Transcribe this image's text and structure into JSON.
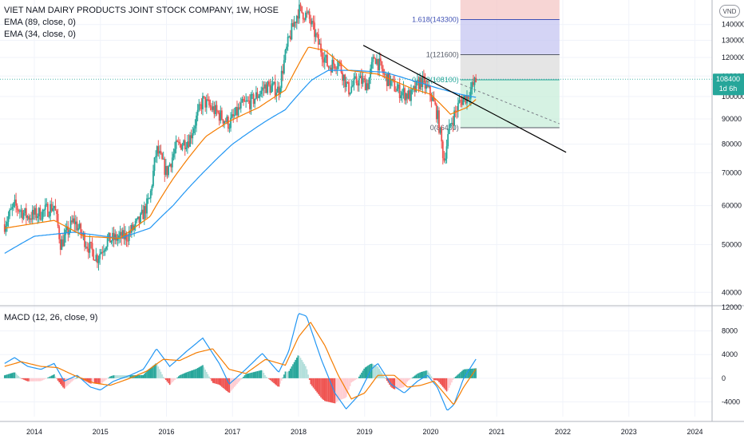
{
  "legend": {
    "title": "VIET NAM DAIRY PRODUCTS JOINT STOCK COMPANY, 1W, HOSE",
    "ema89": "EMA (89, close, 0)",
    "ema34": "EMA (34, close, 0)",
    "macd": "MACD (12, 26, close, 9)"
  },
  "currency_badge": "VND",
  "price_tag": {
    "value": "108400",
    "countdown": "1d 6h"
  },
  "colors": {
    "up": "#26a69a",
    "down": "#ef5350",
    "ema34": "#f57c00",
    "ema89": "#2196f3",
    "macd": "#2196f3",
    "signal": "#f57c00",
    "trendline": "#000000",
    "fib_top": "#f4c7c6",
    "fib_1618": "#c5c6f2",
    "fib_1": "#dcdcdc",
    "fib_zone": "#c8edd9",
    "price_tag": "#26a69a"
  },
  "chart_data": [
    {
      "type": "candlestick",
      "title": "VIET NAM DAIRY PRODUCTS JOINT STOCK COMPANY, 1W, HOSE",
      "x_axis": {
        "ticks": [
          "2014",
          "2015",
          "2016",
          "2017",
          "2018",
          "2019",
          "2020",
          "2021",
          "2022",
          "2023",
          "2024"
        ]
      },
      "y_axis": {
        "ticks": [
          40000,
          50000,
          60000,
          70000,
          80000,
          90000,
          100000,
          110000,
          120000,
          130000,
          140000
        ],
        "scale": "log",
        "range": [
          38000,
          157000
        ]
      },
      "grid": true,
      "price_path": [
        {
          "t": 2013.55,
          "p": 55000
        },
        {
          "t": 2013.7,
          "p": 60000
        },
        {
          "t": 2013.9,
          "p": 57000
        },
        {
          "t": 2014.1,
          "p": 58000
        },
        {
          "t": 2014.3,
          "p": 60000
        },
        {
          "t": 2014.4,
          "p": 50000
        },
        {
          "t": 2014.6,
          "p": 56000
        },
        {
          "t": 2014.8,
          "p": 50000
        },
        {
          "t": 2014.95,
          "p": 47000
        },
        {
          "t": 2015.1,
          "p": 51000
        },
        {
          "t": 2015.4,
          "p": 52000
        },
        {
          "t": 2015.6,
          "p": 56000
        },
        {
          "t": 2015.75,
          "p": 62000
        },
        {
          "t": 2015.85,
          "p": 78000
        },
        {
          "t": 2016.0,
          "p": 70000
        },
        {
          "t": 2016.15,
          "p": 79000
        },
        {
          "t": 2016.35,
          "p": 82000
        },
        {
          "t": 2016.55,
          "p": 98000
        },
        {
          "t": 2016.75,
          "p": 93000
        },
        {
          "t": 2016.95,
          "p": 88000
        },
        {
          "t": 2017.15,
          "p": 96000
        },
        {
          "t": 2017.3,
          "p": 98000
        },
        {
          "t": 2017.5,
          "p": 105000
        },
        {
          "t": 2017.7,
          "p": 103000
        },
        {
          "t": 2017.85,
          "p": 130000
        },
        {
          "t": 2018.0,
          "p": 150000
        },
        {
          "t": 2018.15,
          "p": 145000
        },
        {
          "t": 2018.3,
          "p": 128000
        },
        {
          "t": 2018.45,
          "p": 115000
        },
        {
          "t": 2018.6,
          "p": 118000
        },
        {
          "t": 2018.75,
          "p": 103000
        },
        {
          "t": 2018.9,
          "p": 108000
        },
        {
          "t": 2019.05,
          "p": 106000
        },
        {
          "t": 2019.15,
          "p": 121000
        },
        {
          "t": 2019.3,
          "p": 110000
        },
        {
          "t": 2019.5,
          "p": 103000
        },
        {
          "t": 2019.7,
          "p": 100000
        },
        {
          "t": 2019.85,
          "p": 108000
        },
        {
          "t": 2020.0,
          "p": 101000
        },
        {
          "t": 2020.1,
          "p": 92000
        },
        {
          "t": 2020.2,
          "p": 74000
        },
        {
          "t": 2020.3,
          "p": 88000
        },
        {
          "t": 2020.45,
          "p": 98000
        },
        {
          "t": 2020.55,
          "p": 100000
        },
        {
          "t": 2020.7,
          "p": 108400
        }
      ],
      "ema_34_path": [
        {
          "t": 2013.55,
          "p": 54000
        },
        {
          "t": 2014.3,
          "p": 56000
        },
        {
          "t": 2014.75,
          "p": 52000
        },
        {
          "t": 2015.3,
          "p": 51500
        },
        {
          "t": 2015.75,
          "p": 57000
        },
        {
          "t": 2016.1,
          "p": 68000
        },
        {
          "t": 2016.6,
          "p": 83000
        },
        {
          "t": 2016.95,
          "p": 89000
        },
        {
          "t": 2017.4,
          "p": 95000
        },
        {
          "t": 2017.8,
          "p": 103000
        },
        {
          "t": 2018.15,
          "p": 126000
        },
        {
          "t": 2018.4,
          "p": 124000
        },
        {
          "t": 2018.75,
          "p": 113000
        },
        {
          "t": 2019.2,
          "p": 111000
        },
        {
          "t": 2019.7,
          "p": 104000
        },
        {
          "t": 2020.0,
          "p": 101000
        },
        {
          "t": 2020.3,
          "p": 92000
        },
        {
          "t": 2020.55,
          "p": 95000
        },
        {
          "t": 2020.7,
          "p": 99000
        }
      ],
      "ema_89_path": [
        {
          "t": 2013.55,
          "p": 48000
        },
        {
          "t": 2014.0,
          "p": 52000
        },
        {
          "t": 2014.6,
          "p": 53000
        },
        {
          "t": 2015.3,
          "p": 51500
        },
        {
          "t": 2015.75,
          "p": 54000
        },
        {
          "t": 2016.1,
          "p": 60000
        },
        {
          "t": 2016.6,
          "p": 71000
        },
        {
          "t": 2017.0,
          "p": 80000
        },
        {
          "t": 2017.5,
          "p": 89000
        },
        {
          "t": 2017.8,
          "p": 94000
        },
        {
          "t": 2018.2,
          "p": 108000
        },
        {
          "t": 2018.45,
          "p": 113000
        },
        {
          "t": 2018.8,
          "p": 113000
        },
        {
          "t": 2019.3,
          "p": 112000
        },
        {
          "t": 2019.7,
          "p": 108000
        },
        {
          "t": 2020.1,
          "p": 104000
        },
        {
          "t": 2020.45,
          "p": 101000
        },
        {
          "t": 2020.7,
          "p": 99500
        }
      ],
      "trendline": [
        {
          "t": 2018.98,
          "p": 127000
        },
        {
          "t": 2022.05,
          "p": 77000
        }
      ],
      "projection_line": [
        {
          "t": 2020.45,
          "p": 106000
        },
        {
          "t": 2021.95,
          "p": 88000
        }
      ],
      "fibonacci": {
        "t_start": 2020.45,
        "t_end": 2021.95,
        "levels": [
          {
            "label": "1.618(143300)",
            "value": 143300
          },
          {
            "label": "1(121600)",
            "value": 121600
          },
          {
            "label": "0.618(108100)",
            "value": 108100
          },
          {
            "label": "0(86400)",
            "value": 86400
          }
        ]
      },
      "last_price": 108400
    },
    {
      "type": "macd",
      "title": "MACD (12, 26, close, 9)",
      "y_axis": {
        "ticks": [
          -4000,
          0,
          4000,
          8000,
          12000
        ],
        "range": [
          -6500,
          12000
        ]
      },
      "macd_path": [
        {
          "t": 2013.55,
          "v": 2500
        },
        {
          "t": 2013.7,
          "v": 3500
        },
        {
          "t": 2013.9,
          "v": 2000
        },
        {
          "t": 2014.1,
          "v": 1500
        },
        {
          "t": 2014.3,
          "v": 2500
        },
        {
          "t": 2014.45,
          "v": -500
        },
        {
          "t": 2014.65,
          "v": 500
        },
        {
          "t": 2014.85,
          "v": -1500
        },
        {
          "t": 2015.0,
          "v": -2000
        },
        {
          "t": 2015.2,
          "v": -500
        },
        {
          "t": 2015.45,
          "v": 500
        },
        {
          "t": 2015.65,
          "v": 1500
        },
        {
          "t": 2015.85,
          "v": 5000
        },
        {
          "t": 2016.05,
          "v": 2000
        },
        {
          "t": 2016.3,
          "v": 4500
        },
        {
          "t": 2016.55,
          "v": 6800
        },
        {
          "t": 2016.8,
          "v": 2500
        },
        {
          "t": 2016.95,
          "v": -1000
        },
        {
          "t": 2017.2,
          "v": 1500
        },
        {
          "t": 2017.45,
          "v": 4200
        },
        {
          "t": 2017.7,
          "v": 1000
        },
        {
          "t": 2017.85,
          "v": 4500
        },
        {
          "t": 2018.0,
          "v": 11000
        },
        {
          "t": 2018.12,
          "v": 10500
        },
        {
          "t": 2018.35,
          "v": 3000
        },
        {
          "t": 2018.55,
          "v": -2500
        },
        {
          "t": 2018.72,
          "v": -5200
        },
        {
          "t": 2018.9,
          "v": -3000
        },
        {
          "t": 2019.1,
          "v": 1500
        },
        {
          "t": 2019.2,
          "v": 2500
        },
        {
          "t": 2019.4,
          "v": -1000
        },
        {
          "t": 2019.6,
          "v": -2500
        },
        {
          "t": 2019.8,
          "v": -500
        },
        {
          "t": 2019.95,
          "v": 500
        },
        {
          "t": 2020.1,
          "v": -1500
        },
        {
          "t": 2020.25,
          "v": -5500
        },
        {
          "t": 2020.35,
          "v": -4500
        },
        {
          "t": 2020.5,
          "v": 0
        },
        {
          "t": 2020.7,
          "v": 3500
        }
      ],
      "signal_path": [
        {
          "t": 2013.55,
          "v": 2000
        },
        {
          "t": 2013.8,
          "v": 2800
        },
        {
          "t": 2014.1,
          "v": 2000
        },
        {
          "t": 2014.35,
          "v": 1800
        },
        {
          "t": 2014.6,
          "v": 500
        },
        {
          "t": 2014.9,
          "v": -800
        },
        {
          "t": 2015.15,
          "v": -1200
        },
        {
          "t": 2015.45,
          "v": 0
        },
        {
          "t": 2015.7,
          "v": 1200
        },
        {
          "t": 2015.95,
          "v": 3200
        },
        {
          "t": 2016.2,
          "v": 3000
        },
        {
          "t": 2016.45,
          "v": 4300
        },
        {
          "t": 2016.7,
          "v": 5000
        },
        {
          "t": 2016.95,
          "v": 1500
        },
        {
          "t": 2017.2,
          "v": 800
        },
        {
          "t": 2017.5,
          "v": 3200
        },
        {
          "t": 2017.8,
          "v": 2200
        },
        {
          "t": 2018.0,
          "v": 7000
        },
        {
          "t": 2018.18,
          "v": 9500
        },
        {
          "t": 2018.4,
          "v": 5500
        },
        {
          "t": 2018.6,
          "v": 500
        },
        {
          "t": 2018.8,
          "v": -3500
        },
        {
          "t": 2019.0,
          "v": -2500
        },
        {
          "t": 2019.2,
          "v": 500
        },
        {
          "t": 2019.45,
          "v": 500
        },
        {
          "t": 2019.65,
          "v": -1500
        },
        {
          "t": 2019.85,
          "v": -1200
        },
        {
          "t": 2020.05,
          "v": -500
        },
        {
          "t": 2020.2,
          "v": -2500
        },
        {
          "t": 2020.35,
          "v": -4500
        },
        {
          "t": 2020.5,
          "v": -1500
        },
        {
          "t": 2020.7,
          "v": 1800
        }
      ]
    }
  ]
}
